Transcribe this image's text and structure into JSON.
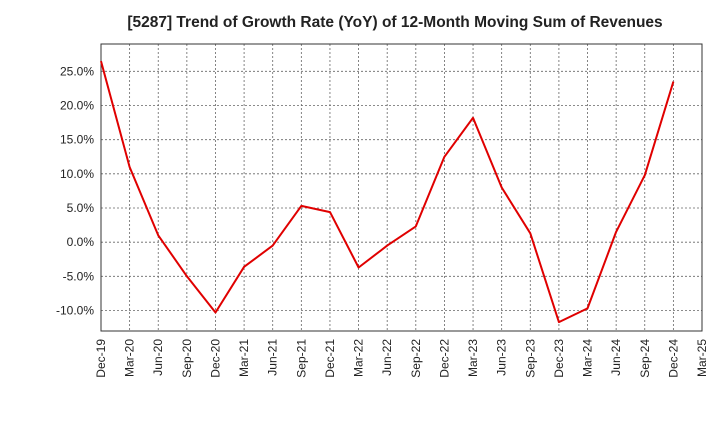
{
  "chart_data": {
    "type": "line",
    "title": "[5287]  Trend of Growth Rate (YoY) of 12-Month Moving Sum of Revenues",
    "xlabel": "",
    "ylabel": "",
    "x": [
      "Dec-19",
      "Mar-20",
      "Jun-20",
      "Sep-20",
      "Dec-20",
      "Mar-21",
      "Jun-21",
      "Sep-21",
      "Dec-21",
      "Mar-22",
      "Jun-22",
      "Sep-22",
      "Dec-22",
      "Mar-23",
      "Jun-23",
      "Sep-23",
      "Dec-23",
      "Mar-24",
      "Jun-24",
      "Sep-24",
      "Dec-24",
      "Mar-25"
    ],
    "series": [
      {
        "color": "#e00000",
        "values": [
          26.5,
          11.0,
          1.0,
          -5.0,
          -10.3,
          -3.6,
          -0.5,
          5.3,
          4.4,
          -3.7,
          -0.5,
          2.3,
          12.5,
          18.2,
          8.0,
          1.3,
          -11.7,
          -9.7,
          1.5,
          9.8,
          23.5,
          null
        ]
      }
    ],
    "yticks": [
      "25.0%",
      "20.0%",
      "15.0%",
      "10.0%",
      "5.0%",
      "0.0%",
      "-5.0%",
      "-10.0%"
    ],
    "ytick_values": [
      25,
      20,
      15,
      10,
      5,
      0,
      -5,
      -10
    ],
    "ylim": [
      -13,
      29
    ],
    "grid": true
  }
}
